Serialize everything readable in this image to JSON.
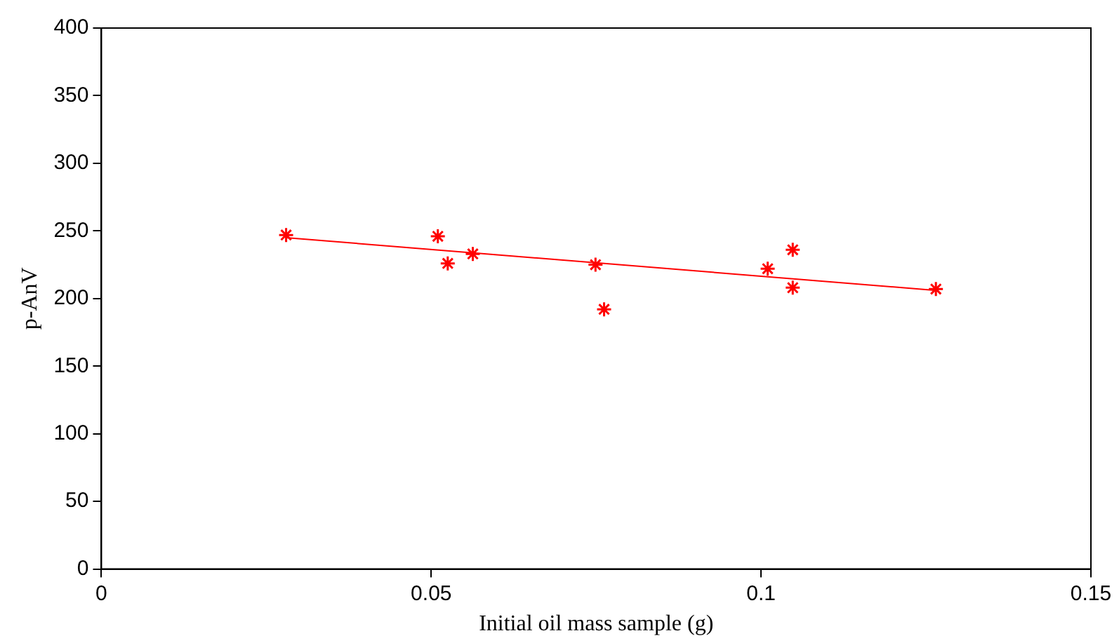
{
  "chart_data": {
    "type": "scatter",
    "xlabel": "Initial oil mass sample (g)",
    "ylabel": "p-AnV",
    "xlim": [
      0,
      0.15
    ],
    "xticks": [
      0,
      0.05,
      0.1,
      0.15
    ],
    "ylim": [
      0,
      400
    ],
    "yticks": [
      0,
      50,
      100,
      150,
      200,
      250,
      300,
      350,
      400
    ],
    "grid": false,
    "legend": false,
    "marker": "cross",
    "series": [
      {
        "color": "#ff0000",
        "x": [
          0.028,
          0.051,
          0.0525,
          0.0563,
          0.0749,
          0.0762,
          0.101,
          0.1048,
          0.1048,
          0.1265
        ],
        "values": [
          247,
          246,
          226,
          233,
          225,
          192,
          222,
          236,
          208,
          207
        ]
      },
      {
        "type": "line",
        "marker": "none",
        "color": "#ff0000",
        "x": [
          0.028,
          0.1265
        ],
        "values": [
          245,
          206
        ]
      }
    ]
  }
}
